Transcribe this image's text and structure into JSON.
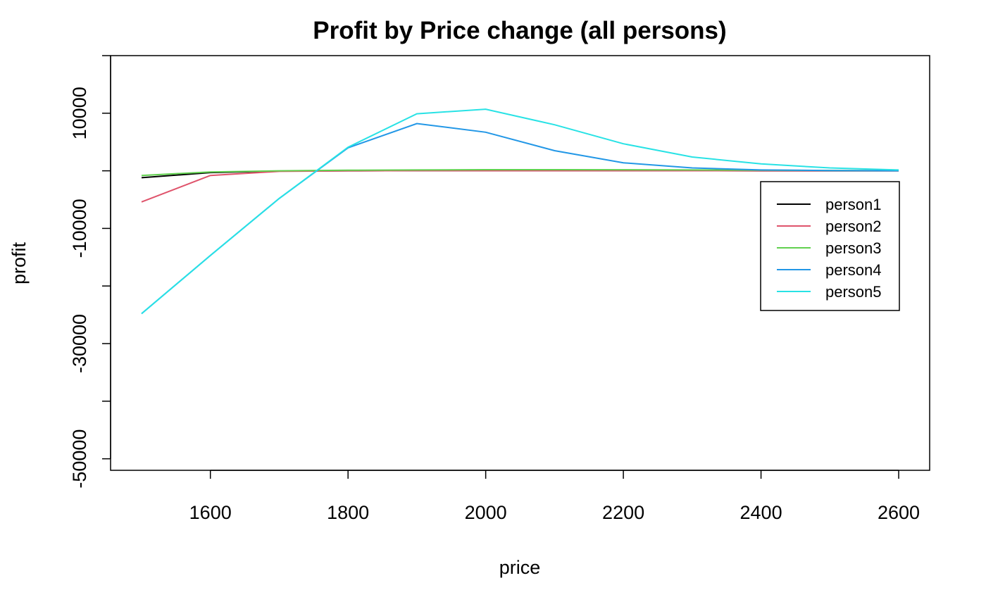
{
  "chart_data": {
    "type": "line",
    "title": "Profit by Price change (all persons)",
    "xlabel": "price",
    "ylabel": "profit",
    "xlim": [
      1455,
      2645
    ],
    "ylim": [
      -52000,
      20000
    ],
    "xticks": [
      1600,
      1800,
      2000,
      2200,
      2400,
      2600
    ],
    "yticks": [
      -50000,
      -40000,
      -30000,
      -20000,
      -10000,
      0,
      10000,
      20000
    ],
    "ytick_labels": [
      "-50000",
      "",
      "-30000",
      "",
      "-10000",
      "",
      "10000",
      ""
    ],
    "grid": false,
    "legend_position": "right",
    "x": [
      1500,
      1600,
      1700,
      1800,
      1900,
      2000,
      2100,
      2200,
      2300,
      2400,
      2500,
      2600
    ],
    "series": [
      {
        "name": "person1",
        "color": "#000000",
        "values": [
          -1200,
          -300,
          -50,
          0,
          20,
          30,
          30,
          20,
          10,
          5,
          2,
          0
        ]
      },
      {
        "name": "person2",
        "color": "#DF536B",
        "values": [
          -5400,
          -800,
          -100,
          0,
          20,
          30,
          30,
          20,
          10,
          5,
          2,
          0
        ]
      },
      {
        "name": "person3",
        "color": "#61D04F",
        "values": [
          -800,
          -200,
          0,
          100,
          150,
          200,
          200,
          180,
          150,
          100,
          60,
          30
        ]
      },
      {
        "name": "person4",
        "color": "#2297E6",
        "values": [
          -24800,
          -14700,
          -4800,
          4000,
          8200,
          6700,
          3500,
          1400,
          500,
          150,
          50,
          10
        ]
      },
      {
        "name": "person5",
        "color": "#28E2E5",
        "values": [
          -24800,
          -14700,
          -4800,
          4100,
          9900,
          10700,
          8000,
          4700,
          2400,
          1200,
          500,
          150
        ]
      }
    ]
  }
}
